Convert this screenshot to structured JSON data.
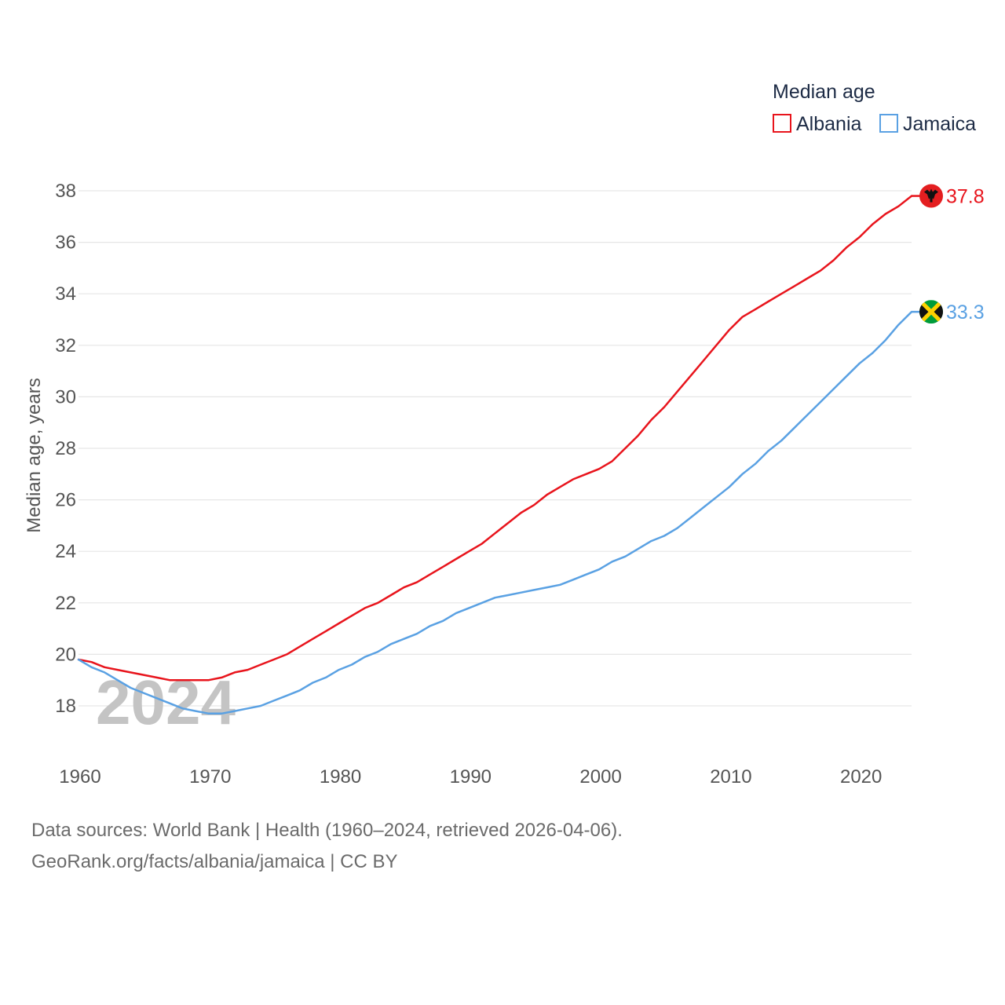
{
  "chart_data": {
    "type": "line",
    "legend_title": "Median age",
    "ylabel": "Median age, years",
    "ylim": [
      17,
      38.3
    ],
    "yticks": [
      18,
      20,
      22,
      24,
      26,
      28,
      30,
      32,
      34,
      36,
      38
    ],
    "ytick_labels": [
      "18",
      "20",
      "22",
      "24",
      "26",
      "28",
      "30",
      "32",
      "34",
      "36",
      "38"
    ],
    "xlim": [
      1960,
      2024
    ],
    "xticks": [
      1960,
      1970,
      1980,
      1990,
      2000,
      2010,
      2020
    ],
    "xtick_labels": [
      "1960",
      "1970",
      "1980",
      "1990",
      "2000",
      "2010",
      "2020"
    ],
    "current_year": "2024",
    "series": [
      {
        "name": "Albania",
        "color": "#e8141c",
        "end_label": "37.8",
        "flag": "albania-flag-icon",
        "x": [
          1960,
          1961,
          1962,
          1963,
          1964,
          1965,
          1966,
          1967,
          1968,
          1969,
          1970,
          1971,
          1972,
          1973,
          1974,
          1975,
          1976,
          1977,
          1978,
          1979,
          1980,
          1981,
          1982,
          1983,
          1984,
          1985,
          1986,
          1987,
          1988,
          1989,
          1990,
          1991,
          1992,
          1993,
          1994,
          1995,
          1996,
          1997,
          1998,
          1999,
          2000,
          2001,
          2002,
          2003,
          2004,
          2005,
          2006,
          2007,
          2008,
          2009,
          2010,
          2011,
          2012,
          2013,
          2014,
          2015,
          2016,
          2017,
          2018,
          2019,
          2020,
          2021,
          2022,
          2023,
          2024
        ],
        "values": [
          19.8,
          19.7,
          19.5,
          19.4,
          19.3,
          19.2,
          19.1,
          19.0,
          19.0,
          19.0,
          19.0,
          19.1,
          19.3,
          19.4,
          19.6,
          19.8,
          20.0,
          20.3,
          20.6,
          20.9,
          21.2,
          21.5,
          21.8,
          22.0,
          22.3,
          22.6,
          22.8,
          23.1,
          23.4,
          23.7,
          24.0,
          24.3,
          24.7,
          25.1,
          25.5,
          25.8,
          26.2,
          26.5,
          26.8,
          27.0,
          27.2,
          27.5,
          28.0,
          28.5,
          29.1,
          29.6,
          30.2,
          30.8,
          31.4,
          32.0,
          32.6,
          33.1,
          33.4,
          33.7,
          34.0,
          34.3,
          34.6,
          34.9,
          35.3,
          35.8,
          36.2,
          36.7,
          37.1,
          37.4,
          37.8
        ]
      },
      {
        "name": "Jamaica",
        "color": "#5aa1e3",
        "end_label": "33.3",
        "flag": "jamaica-flag-icon",
        "x": [
          1960,
          1961,
          1962,
          1963,
          1964,
          1965,
          1966,
          1967,
          1968,
          1969,
          1970,
          1971,
          1972,
          1973,
          1974,
          1975,
          1976,
          1977,
          1978,
          1979,
          1980,
          1981,
          1982,
          1983,
          1984,
          1985,
          1986,
          1987,
          1988,
          1989,
          1990,
          1991,
          1992,
          1993,
          1994,
          1995,
          1996,
          1997,
          1998,
          1999,
          2000,
          2001,
          2002,
          2003,
          2004,
          2005,
          2006,
          2007,
          2008,
          2009,
          2010,
          2011,
          2012,
          2013,
          2014,
          2015,
          2016,
          2017,
          2018,
          2019,
          2020,
          2021,
          2022,
          2023,
          2024
        ],
        "values": [
          19.8,
          19.5,
          19.3,
          19.0,
          18.7,
          18.5,
          18.3,
          18.1,
          17.9,
          17.8,
          17.7,
          17.7,
          17.8,
          17.9,
          18.0,
          18.2,
          18.4,
          18.6,
          18.9,
          19.1,
          19.4,
          19.6,
          19.9,
          20.1,
          20.4,
          20.6,
          20.8,
          21.1,
          21.3,
          21.6,
          21.8,
          22.0,
          22.2,
          22.3,
          22.4,
          22.5,
          22.6,
          22.7,
          22.9,
          23.1,
          23.3,
          23.6,
          23.8,
          24.1,
          24.4,
          24.6,
          24.9,
          25.3,
          25.7,
          26.1,
          26.5,
          27.0,
          27.4,
          27.9,
          28.3,
          28.8,
          29.3,
          29.8,
          30.3,
          30.8,
          31.3,
          31.7,
          32.2,
          32.8,
          33.3
        ]
      }
    ]
  },
  "footer": {
    "source_line": "Data sources: World Bank | Health (1960–2024, retrieved 2026-04-06).",
    "url_line": "GeoRank.org/facts/albania/jamaica | CC BY"
  }
}
